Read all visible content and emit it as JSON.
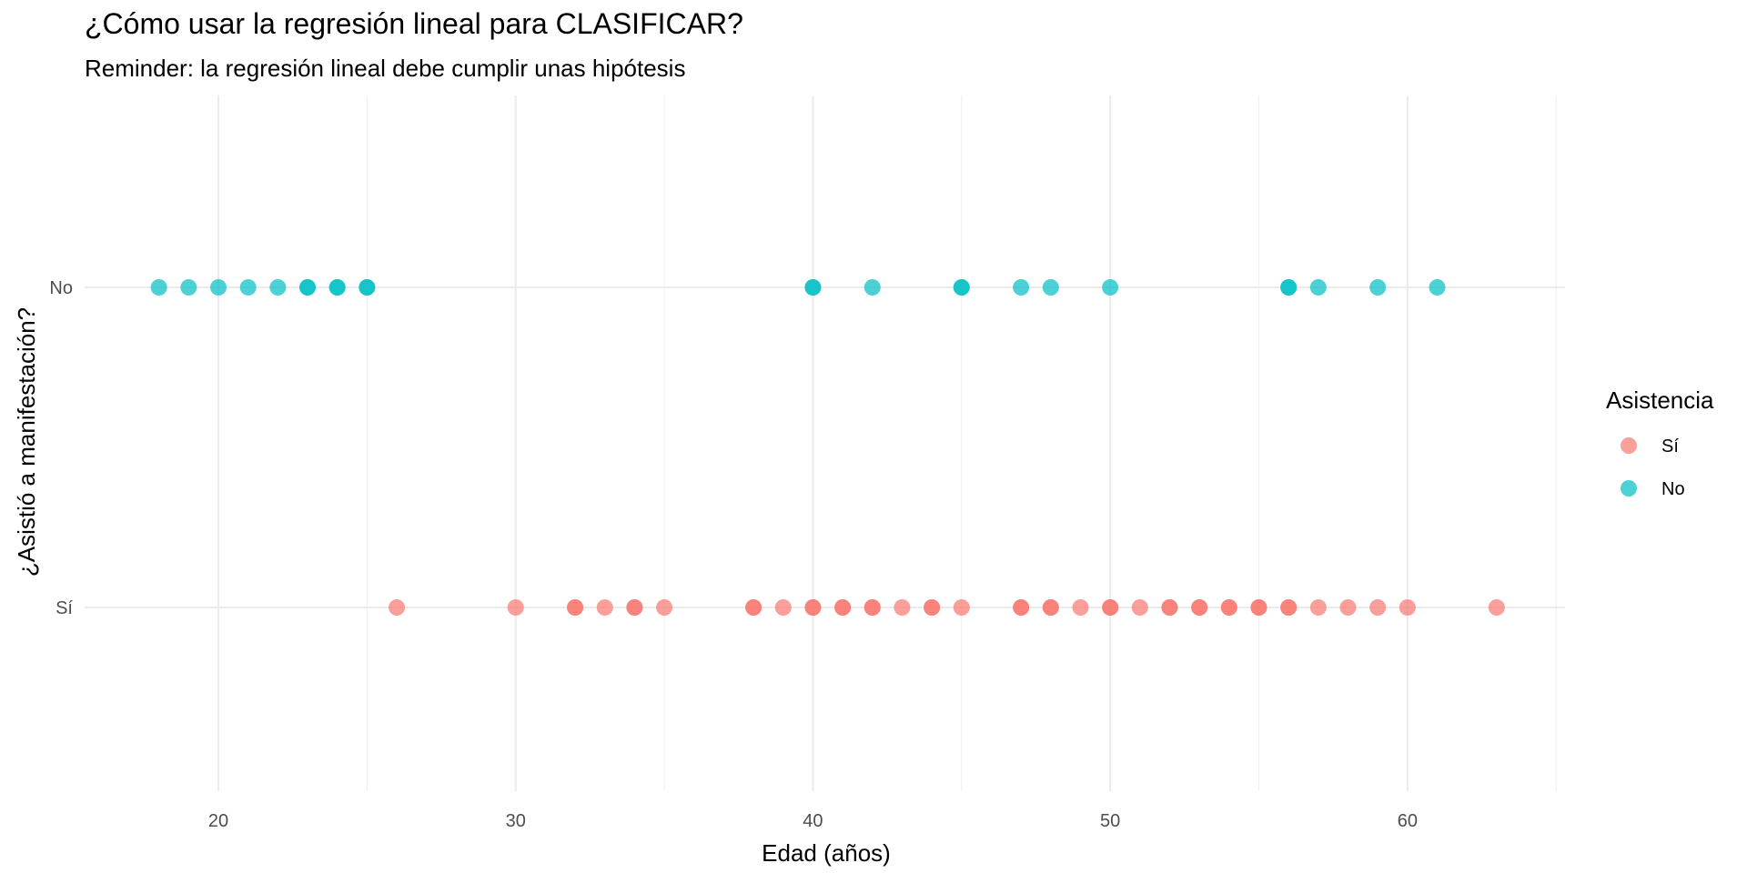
{
  "chart_data": {
    "type": "scatter",
    "title": "¿Cómo usar la regresión lineal para CLASIFICAR?",
    "subtitle": "Reminder: la regresión lineal debe cumplir unas hipótesis",
    "xlabel": "Edad (años)",
    "ylabel": "¿Asistió a manifestación?",
    "xlim": [
      15.5,
      65.3
    ],
    "x_ticks": [
      20,
      30,
      40,
      50,
      60
    ],
    "y_categories": [
      "Sí",
      "No"
    ],
    "grid": true,
    "legend": {
      "title": "Asistencia",
      "position": "right",
      "entries": [
        "Sí",
        "No"
      ]
    },
    "series": [
      {
        "name": "Sí",
        "color": "#F8766D",
        "y": "Sí",
        "x": [
          26,
          30,
          32,
          32,
          33,
          34,
          34,
          35,
          38,
          38,
          39,
          40,
          40,
          41,
          41,
          42,
          42,
          43,
          44,
          44,
          45,
          47,
          47,
          48,
          48,
          49,
          50,
          50,
          51,
          52,
          52,
          53,
          53,
          54,
          54,
          55,
          55,
          56,
          56,
          57,
          58,
          59,
          60,
          63
        ]
      },
      {
        "name": "No",
        "color": "#00BFC4",
        "y": "No",
        "x": [
          18,
          19,
          20,
          21,
          22,
          23,
          23,
          24,
          24,
          25,
          25,
          40,
          40,
          42,
          45,
          45,
          47,
          48,
          50,
          56,
          56,
          57,
          59,
          61
        ]
      }
    ]
  }
}
